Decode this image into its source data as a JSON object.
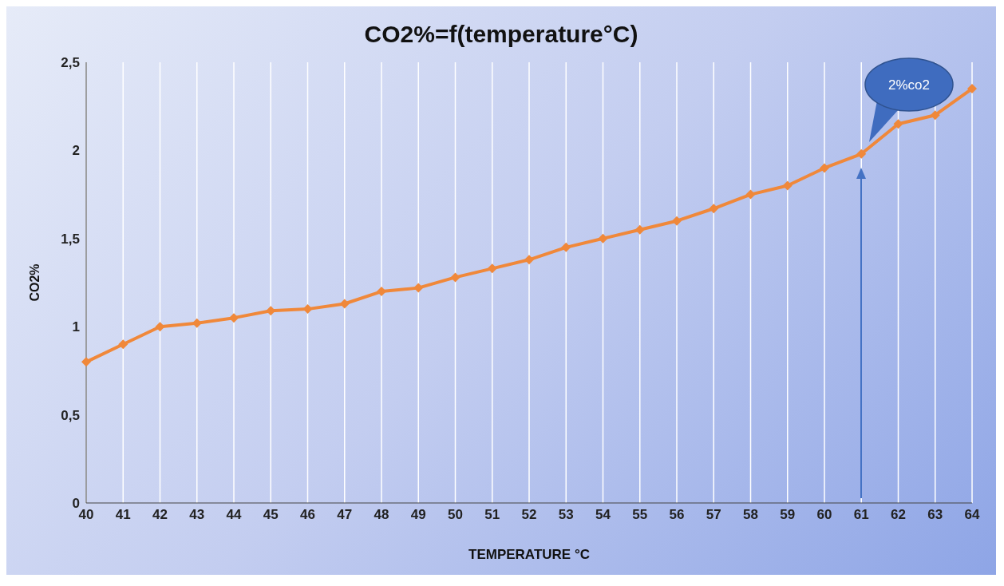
{
  "chart_data": {
    "type": "line",
    "title": "CO2%=f(temperature°C)",
    "xlabel": "TEMPERATURE °C",
    "ylabel": "CO2%",
    "categories": [
      "40",
      "41",
      "42",
      "43",
      "44",
      "45",
      "46",
      "47",
      "48",
      "49",
      "50",
      "51",
      "52",
      "53",
      "54",
      "55",
      "56",
      "57",
      "58",
      "59",
      "60",
      "61",
      "62",
      "63",
      "64"
    ],
    "series": [
      {
        "color": "#f0883a",
        "values": [
          0.8,
          0.9,
          1.0,
          1.02,
          1.05,
          1.09,
          1.1,
          1.13,
          1.2,
          1.22,
          1.28,
          1.33,
          1.38,
          1.45,
          1.5,
          1.55,
          1.6,
          1.67,
          1.75,
          1.8,
          1.9,
          1.98,
          2.15,
          2.2,
          2.35
        ]
      }
    ],
    "ylim": [
      0,
      2.5
    ],
    "yticks": [
      0,
      {
        "value": 0.5,
        "label": "0,5"
      },
      1,
      {
        "value": 1.5,
        "label": "1,5"
      },
      2,
      {
        "value": 2.5,
        "label": "2,5"
      }
    ],
    "grid": "x",
    "marker": "diamond",
    "line_style": "solid",
    "annotations": [
      "2%co2"
    ]
  }
}
